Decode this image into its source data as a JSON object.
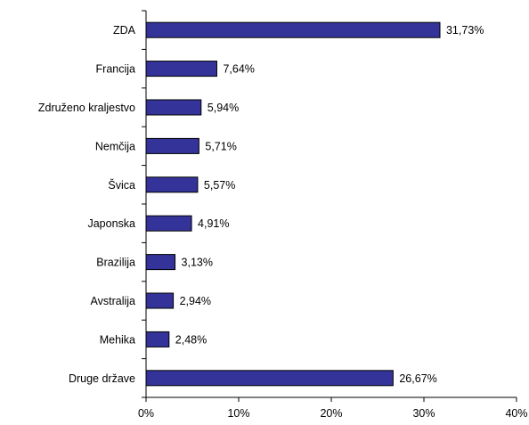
{
  "chart_data": {
    "type": "bar",
    "orientation": "horizontal",
    "categories": [
      "ZDA",
      "Francija",
      "Združeno kraljestvo",
      "Nemčija",
      "Švica",
      "Japonska",
      "Brazilija",
      "Avstralija",
      "Mehika",
      "Druge države"
    ],
    "values": [
      31.73,
      7.64,
      5.94,
      5.71,
      5.57,
      4.91,
      3.13,
      2.94,
      2.48,
      26.67
    ],
    "data_labels": [
      "31,73%",
      "7,64%",
      "5,94%",
      "5,71%",
      "5,57%",
      "4,91%",
      "3,13%",
      "2,94%",
      "2,48%",
      "26,67%"
    ],
    "x_ticks": [
      0,
      10,
      20,
      30,
      40
    ],
    "x_tick_labels": [
      "0%",
      "10%",
      "20%",
      "30%",
      "40%"
    ],
    "xlim": [
      0,
      40
    ],
    "bar_color": "#33339a",
    "bar_edge_color": "#000000",
    "grid": false,
    "legend": "none",
    "title": "",
    "xlabel": "",
    "ylabel": ""
  }
}
